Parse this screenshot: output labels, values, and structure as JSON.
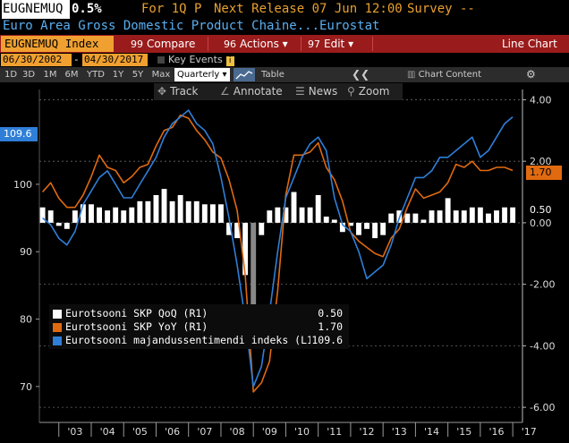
{
  "header": {
    "ticker": "EUGNEMUQ",
    "change": "0.5%",
    "for_period": "For 1Q P",
    "next_release": "Next Release 07 Jun 12:00",
    "survey": "Survey --",
    "description": "Euro Area Gross Domestic Product Chaine...Eurostat"
  },
  "menu": {
    "security": "EUGNEMUQ Index",
    "compare_num": "99",
    "compare": "Compare",
    "actions_num": "96",
    "actions": "Actions",
    "edit_num": "97",
    "edit": "Edit",
    "line_chart": "Line Chart"
  },
  "dates": {
    "start": "06/30/2002",
    "end": "04/30/2017",
    "key_events": "Key Events"
  },
  "periods": [
    "1D",
    "3D",
    "1M",
    "6M",
    "YTD",
    "1Y",
    "5Y",
    "Max"
  ],
  "frequency": "Quarterly",
  "table_label": "Table",
  "chart_content_label": "Chart Content",
  "tools": {
    "track": "Track",
    "annotate": "Annotate",
    "news": "News",
    "zoom": "Zoom"
  },
  "tags": {
    "left_value": "109.6",
    "right_orange": "1.70",
    "right_white": "0.50"
  },
  "legend": [
    {
      "label": "Eurotsooni SKP QoQ (R1)",
      "value": "0.50",
      "color": "#ffffff"
    },
    {
      "label": "Eurotsooni SKP YoY (R1)",
      "value": "1.70",
      "color": "#e06a10"
    },
    {
      "label": "Eurotsooni majandussentimendi indeks (L1)",
      "value": "109.6",
      "color": "#2f7fd8"
    }
  ],
  "chart_data": {
    "type": "line",
    "x_labels": [
      "'03",
      "'04",
      "'05",
      "'06",
      "'07",
      "'08",
      "'09",
      "'10",
      "'11",
      "'12",
      "'13",
      "'14",
      "'15",
      "'16",
      "'17"
    ],
    "left_axis": {
      "ticks": [
        70,
        80,
        90,
        100
      ],
      "range": [
        66,
        113
      ]
    },
    "right_axis": {
      "ticks": [
        "4.00",
        "2.00",
        "0.00",
        "-2.00",
        "-4.00",
        "-6.00"
      ],
      "range": [
        -6.2,
        4.1
      ]
    },
    "colors": {
      "qoq": "#ffffff",
      "yoy": "#e06a10",
      "esi": "#2f7fd8"
    },
    "series": [
      {
        "name": "Eurotsooni SKP QoQ (R1)",
        "axis": "right",
        "kind": "bar",
        "x": [
          2002.5,
          2002.75,
          2003.0,
          2003.25,
          2003.5,
          2003.75,
          2004.0,
          2004.25,
          2004.5,
          2004.75,
          2005.0,
          2005.25,
          2005.5,
          2005.75,
          2006.0,
          2006.25,
          2006.5,
          2006.75,
          2007.0,
          2007.25,
          2007.5,
          2007.75,
          2008.0,
          2008.25,
          2008.5,
          2008.75,
          2009.0,
          2009.25,
          2009.5,
          2009.75,
          2010.0,
          2010.25,
          2010.5,
          2010.75,
          2011.0,
          2011.25,
          2011.5,
          2011.75,
          2012.0,
          2012.25,
          2012.5,
          2012.75,
          2013.0,
          2013.25,
          2013.5,
          2013.75,
          2014.0,
          2014.25,
          2014.5,
          2014.75,
          2015.0,
          2015.25,
          2015.5,
          2015.75,
          2016.0,
          2016.25,
          2016.5,
          2016.75,
          2017.0
        ],
        "values": [
          0.5,
          0.4,
          -0.1,
          -0.2,
          0.4,
          0.6,
          0.6,
          0.5,
          0.4,
          0.5,
          0.4,
          0.5,
          0.7,
          0.7,
          0.9,
          1.1,
          0.7,
          0.9,
          0.7,
          0.7,
          0.6,
          0.6,
          0.6,
          -0.4,
          -0.5,
          -1.7,
          -3.1,
          -0.4,
          0.4,
          0.5,
          0.5,
          1.0,
          0.5,
          0.5,
          0.9,
          0.2,
          0.1,
          -0.3,
          -0.1,
          -0.4,
          -0.2,
          -0.5,
          -0.4,
          0.3,
          0.4,
          0.3,
          0.3,
          0.1,
          0.4,
          0.4,
          0.8,
          0.4,
          0.4,
          0.5,
          0.5,
          0.3,
          0.4,
          0.5,
          0.5
        ]
      },
      {
        "name": "Eurotsooni SKP YoY (R1)",
        "axis": "right",
        "kind": "line",
        "x": [
          2002.5,
          2002.75,
          2003.0,
          2003.25,
          2003.5,
          2003.75,
          2004.0,
          2004.25,
          2004.5,
          2004.75,
          2005.0,
          2005.25,
          2005.5,
          2005.75,
          2006.0,
          2006.25,
          2006.5,
          2006.75,
          2007.0,
          2007.25,
          2007.5,
          2007.75,
          2008.0,
          2008.25,
          2008.5,
          2008.75,
          2009.0,
          2009.25,
          2009.5,
          2009.75,
          2010.0,
          2010.25,
          2010.5,
          2010.75,
          2011.0,
          2011.25,
          2011.5,
          2011.75,
          2012.0,
          2012.25,
          2012.5,
          2012.75,
          2013.0,
          2013.25,
          2013.5,
          2013.75,
          2014.0,
          2014.25,
          2014.5,
          2014.75,
          2015.0,
          2015.25,
          2015.5,
          2015.75,
          2016.0,
          2016.25,
          2016.5,
          2016.75,
          2017.0
        ],
        "values": [
          1.0,
          1.3,
          0.8,
          0.5,
          0.5,
          0.9,
          1.5,
          2.2,
          1.8,
          1.7,
          1.3,
          1.5,
          1.8,
          1.9,
          2.5,
          3.0,
          3.1,
          3.5,
          3.4,
          3.0,
          2.7,
          2.3,
          2.1,
          1.4,
          0.4,
          -1.7,
          -5.5,
          -5.2,
          -4.5,
          -2.2,
          0.9,
          2.2,
          2.2,
          2.3,
          2.6,
          1.8,
          1.4,
          0.7,
          -0.3,
          -0.6,
          -0.8,
          -1.0,
          -1.1,
          -0.5,
          -0.2,
          0.5,
          1.1,
          0.8,
          0.9,
          1.0,
          1.3,
          1.9,
          1.8,
          2.0,
          1.7,
          1.7,
          1.8,
          1.8,
          1.7
        ]
      },
      {
        "name": "Eurotsooni majandussentimendi indeks (L1)",
        "axis": "left",
        "kind": "line",
        "x": [
          2002.5,
          2002.75,
          2003.0,
          2003.25,
          2003.5,
          2003.75,
          2004.0,
          2004.25,
          2004.5,
          2004.75,
          2005.0,
          2005.25,
          2005.5,
          2005.75,
          2006.0,
          2006.25,
          2006.5,
          2006.75,
          2007.0,
          2007.25,
          2007.5,
          2007.75,
          2008.0,
          2008.25,
          2008.5,
          2008.75,
          2009.0,
          2009.25,
          2009.5,
          2009.75,
          2010.0,
          2010.25,
          2010.5,
          2010.75,
          2011.0,
          2011.25,
          2011.5,
          2011.75,
          2012.0,
          2012.25,
          2012.5,
          2012.75,
          2013.0,
          2013.25,
          2013.5,
          2013.75,
          2014.0,
          2014.25,
          2014.5,
          2014.75,
          2015.0,
          2015.25,
          2015.5,
          2015.75,
          2016.0,
          2016.25,
          2016.5,
          2016.75,
          2017.0
        ],
        "values": [
          95,
          94,
          92,
          91,
          93,
          97,
          99,
          101,
          102,
          100,
          98,
          98,
          100,
          102,
          104,
          107,
          109,
          110,
          111,
          109,
          108,
          106,
          101,
          95,
          88,
          80,
          70,
          73,
          81,
          90,
          98,
          101,
          104,
          106,
          107,
          105,
          98,
          94,
          93,
          90,
          86,
          87,
          88,
          91,
          95,
          98,
          101,
          101,
          102,
          104,
          104,
          105,
          106,
          107,
          104,
          105,
          107,
          109,
          110
        ]
      }
    ]
  }
}
